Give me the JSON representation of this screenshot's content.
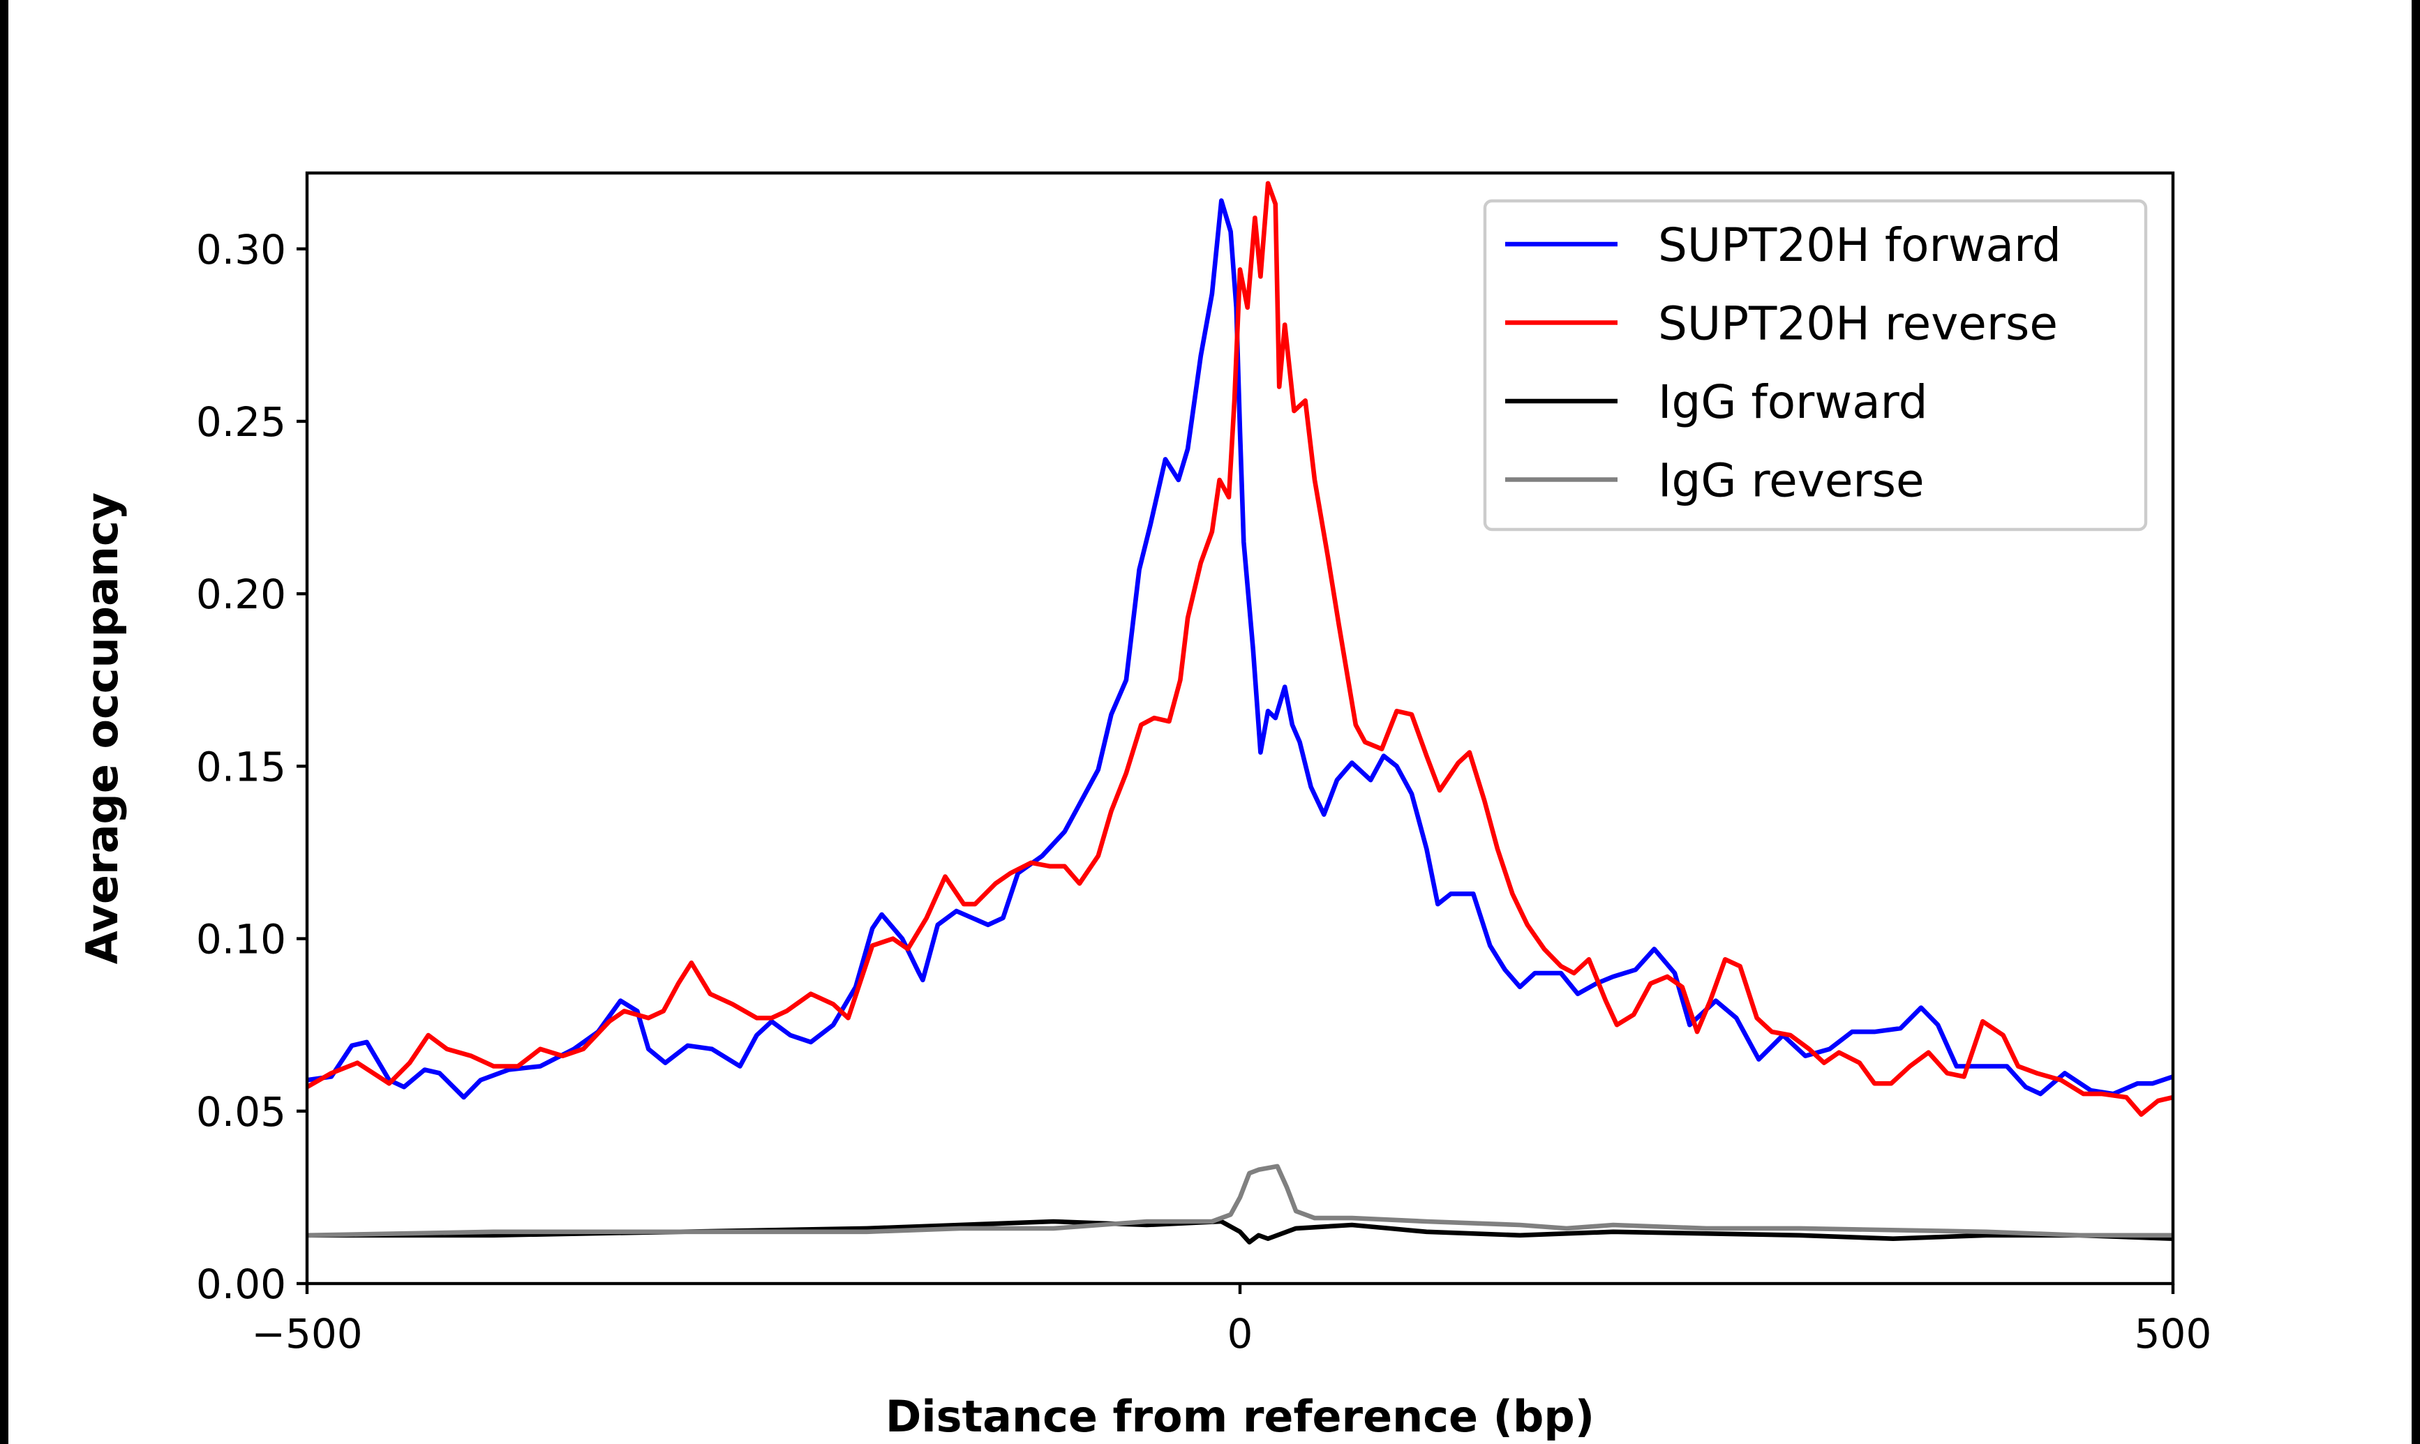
{
  "chart_data": {
    "type": "line",
    "title": "",
    "xlabel": "Distance from reference (bp)",
    "ylabel": "Average occupancy",
    "xlim": [
      -500,
      500
    ],
    "ylim": [
      0,
      0.322
    ],
    "xticks": [
      -500,
      0,
      500
    ],
    "xtick_labels": [
      "−500",
      "0",
      "500"
    ],
    "yticks": [
      0,
      0.05,
      0.1,
      0.15,
      0.2,
      0.25,
      0.3
    ],
    "ytick_labels": [
      "0.00",
      "0.05",
      "0.10",
      "0.15",
      "0.20",
      "0.25",
      "0.30"
    ],
    "grid": false,
    "legend_position": "top-right",
    "series": [
      {
        "name": "SUPT20H forward",
        "color": "#0000ff",
        "x": [
          -500,
          -487,
          -476,
          -468,
          -456,
          -448,
          -437,
          -429,
          -416,
          -407,
          -392,
          -375,
          -357,
          -344,
          -332,
          -323,
          -317,
          -308,
          -296,
          -283,
          -268,
          -259,
          -251,
          -241,
          -230,
          -218,
          -206,
          -197,
          -192,
          -181,
          -172,
          -170,
          -162,
          -152,
          -135,
          -127,
          -119,
          -106,
          -94,
          -86,
          -76,
          -69,
          -61,
          -54,
          -48,
          -40,
          -33,
          -28,
          -21,
          -15,
          -10,
          -5,
          -2,
          0,
          2,
          7,
          11,
          15,
          19,
          24,
          28,
          32,
          38,
          45,
          52,
          60,
          70,
          77,
          84,
          92,
          100,
          106,
          113,
          125,
          134,
          142,
          150,
          158,
          172,
          181,
          191,
          200,
          212,
          222,
          233,
          241,
          245,
          255,
          266,
          278,
          291,
          303,
          316,
          328,
          340,
          354,
          365,
          374,
          384,
          394,
          411,
          421,
          429,
          442,
          456,
          468,
          481,
          489,
          500
        ],
        "y": [
          0.059,
          0.06,
          0.069,
          0.07,
          0.059,
          0.057,
          0.062,
          0.061,
          0.054,
          0.059,
          0.062,
          0.063,
          0.068,
          0.073,
          0.082,
          0.079,
          0.068,
          0.064,
          0.069,
          0.068,
          0.063,
          0.072,
          0.076,
          0.072,
          0.07,
          0.075,
          0.086,
          0.103,
          0.107,
          0.1,
          0.09,
          0.088,
          0.104,
          0.108,
          0.104,
          0.106,
          0.119,
          0.124,
          0.131,
          0.139,
          0.149,
          0.165,
          0.175,
          0.207,
          0.22,
          0.239,
          0.233,
          0.242,
          0.269,
          0.287,
          0.314,
          0.305,
          0.283,
          0.247,
          0.215,
          0.184,
          0.154,
          0.166,
          0.164,
          0.173,
          0.162,
          0.157,
          0.144,
          0.136,
          0.146,
          0.151,
          0.146,
          0.153,
          0.15,
          0.142,
          0.126,
          0.11,
          0.113,
          0.113,
          0.098,
          0.091,
          0.086,
          0.09,
          0.09,
          0.084,
          0.087,
          0.089,
          0.091,
          0.097,
          0.09,
          0.075,
          0.077,
          0.082,
          0.077,
          0.065,
          0.072,
          0.066,
          0.068,
          0.073,
          0.073,
          0.074,
          0.08,
          0.075,
          0.063,
          0.063,
          0.063,
          0.057,
          0.055,
          0.061,
          0.056,
          0.055,
          0.058,
          0.058,
          0.06
        ]
      },
      {
        "name": "SUPT20H reverse",
        "color": "#ff0000",
        "x": [
          -500,
          -487,
          -473,
          -456,
          -445,
          -435,
          -425,
          -412,
          -400,
          -387,
          -375,
          -363,
          -352,
          -338,
          -330,
          -317,
          -309,
          -301,
          -294,
          -284,
          -272,
          -259,
          -251,
          -243,
          -230,
          -218,
          -210,
          -197,
          -186,
          -178,
          -168,
          -158,
          -148,
          -142,
          -131,
          -123,
          -112,
          -102,
          -94,
          -86,
          -76,
          -69,
          -61,
          -53,
          -46,
          -38,
          -32,
          -28,
          -21,
          -15,
          -11,
          -6,
          -3,
          0,
          4,
          8,
          11,
          15,
          19,
          21,
          24,
          29,
          35,
          40,
          47,
          53,
          62,
          67,
          76,
          84,
          92,
          100,
          107,
          117,
          123,
          131,
          138,
          146,
          154,
          163,
          172,
          179,
          187,
          196,
          202,
          211,
          220,
          229,
          237,
          245,
          252,
          260,
          268,
          277,
          285,
          295,
          305,
          313,
          321,
          332,
          340,
          349,
          359,
          369,
          379,
          388,
          398,
          409,
          417,
          427,
          440,
          452,
          462,
          475,
          483,
          492,
          500
        ],
        "y": [
          0.057,
          0.061,
          0.064,
          0.058,
          0.064,
          0.072,
          0.068,
          0.066,
          0.063,
          0.063,
          0.068,
          0.066,
          0.068,
          0.076,
          0.079,
          0.077,
          0.079,
          0.087,
          0.093,
          0.084,
          0.081,
          0.077,
          0.077,
          0.079,
          0.084,
          0.081,
          0.077,
          0.098,
          0.1,
          0.097,
          0.106,
          0.118,
          0.11,
          0.11,
          0.116,
          0.119,
          0.122,
          0.121,
          0.121,
          0.116,
          0.124,
          0.137,
          0.148,
          0.162,
          0.164,
          0.163,
          0.175,
          0.193,
          0.209,
          0.218,
          0.233,
          0.228,
          0.256,
          0.294,
          0.283,
          0.309,
          0.292,
          0.319,
          0.313,
          0.26,
          0.278,
          0.253,
          0.256,
          0.233,
          0.211,
          0.191,
          0.162,
          0.157,
          0.155,
          0.166,
          0.165,
          0.153,
          0.143,
          0.151,
          0.154,
          0.14,
          0.126,
          0.113,
          0.104,
          0.097,
          0.092,
          0.09,
          0.094,
          0.082,
          0.075,
          0.078,
          0.087,
          0.089,
          0.086,
          0.073,
          0.082,
          0.094,
          0.092,
          0.077,
          0.073,
          0.072,
          0.068,
          0.064,
          0.067,
          0.064,
          0.058,
          0.058,
          0.063,
          0.067,
          0.061,
          0.06,
          0.076,
          0.072,
          0.063,
          0.061,
          0.059,
          0.055,
          0.055,
          0.054,
          0.049,
          0.053,
          0.054
        ]
      },
      {
        "name": "IgG forward",
        "color": "#000000",
        "x": [
          -500,
          -400,
          -300,
          -200,
          -100,
          -50,
          -10,
          0,
          5,
          10,
          15,
          30,
          60,
          80,
          100,
          150,
          200,
          300,
          350,
          400,
          450,
          500
        ],
        "y": [
          0.014,
          0.014,
          0.015,
          0.016,
          0.018,
          0.017,
          0.018,
          0.015,
          0.012,
          0.014,
          0.013,
          0.016,
          0.017,
          0.016,
          0.015,
          0.014,
          0.015,
          0.014,
          0.013,
          0.014,
          0.014,
          0.013
        ]
      },
      {
        "name": "IgG reverse",
        "color": "#808080",
        "x": [
          -500,
          -400,
          -300,
          -250,
          -200,
          -150,
          -100,
          -50,
          -15,
          -5,
          0,
          5,
          10,
          20,
          25,
          30,
          40,
          60,
          100,
          150,
          175,
          200,
          250,
          300,
          400,
          450,
          500
        ],
        "y": [
          0.014,
          0.015,
          0.015,
          0.015,
          0.015,
          0.016,
          0.016,
          0.018,
          0.018,
          0.02,
          0.025,
          0.032,
          0.033,
          0.034,
          0.028,
          0.021,
          0.019,
          0.019,
          0.018,
          0.017,
          0.016,
          0.017,
          0.016,
          0.016,
          0.015,
          0.014,
          0.014
        ]
      }
    ]
  }
}
